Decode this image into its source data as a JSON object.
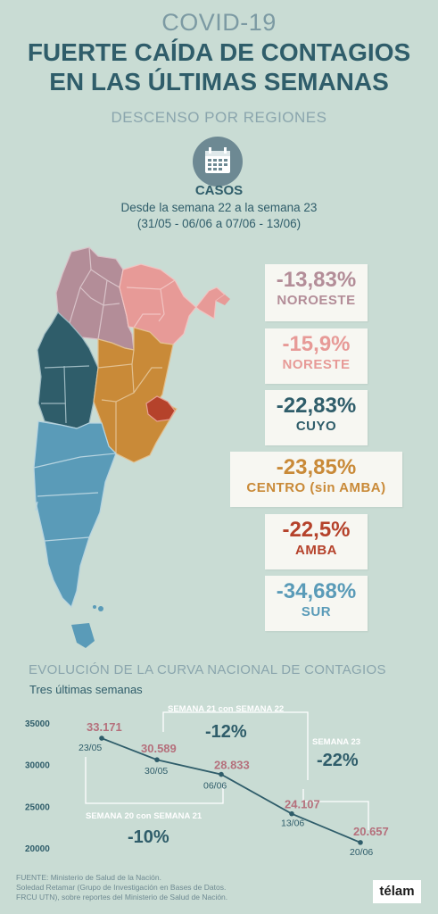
{
  "header": {
    "kicker": "COVID-19",
    "title_line1": "FUERTE CAÍDA DE CONTAGIOS",
    "title_line2": "EN LAS ÚLTIMAS SEMANAS",
    "subtitle": "DESCENSO POR REGIONES"
  },
  "cases": {
    "label": "CASOS",
    "period_line1": "Desde la semana 22 a la semana 23",
    "period_range_a": "31/05 - 06/06",
    "period_connector": "a",
    "period_range_b": "07/06 - 13/06",
    "icon": "calendar-icon"
  },
  "regions": [
    {
      "pct": "-13,83%",
      "name": "NOROESTE",
      "color": "#b38d98"
    },
    {
      "pct": "-15,9%",
      "name": "NORESTE",
      "color": "#e79a97"
    },
    {
      "pct": "-22,83%",
      "name": "CUYO",
      "color": "#2f5d6a"
    },
    {
      "pct": "-23,85%",
      "name": "CENTRO (sin AMBA)",
      "color": "#c98a38"
    },
    {
      "pct": "-22,5%",
      "name": "AMBA",
      "color": "#b5422b"
    },
    {
      "pct": "-34,68%",
      "name": "SUR",
      "color": "#5a9bb8"
    }
  ],
  "chart_data": {
    "type": "line",
    "title": "EVOLUCIÓN DE LA CURVA NACIONAL DE CONTAGIOS",
    "subtitle": "Tres últimas semanas",
    "x": [
      "23/05",
      "30/05",
      "06/06",
      "13/06",
      "20/06"
    ],
    "series": [
      {
        "values": [
          33171,
          30589,
          28833,
          24107,
          20657
        ],
        "labels": [
          "33.171",
          "30.589",
          "28.833",
          "24.107",
          "20.657"
        ]
      }
    ],
    "yticks": [
      "35000",
      "30000",
      "25000",
      "20000"
    ],
    "ylim": [
      20000,
      35000
    ],
    "annotations": [
      {
        "label": "SEMANA 20 con SEMANA 21",
        "value": "-10%"
      },
      {
        "label": "SEMANA 21 con SEMANA 22",
        "value": "-12%"
      },
      {
        "label": "SEMANA 23",
        "value": "-22%"
      }
    ],
    "colors": {
      "line": "#2f5d6a",
      "data_label": "#b5707c",
      "bracket": "#ffffff"
    }
  },
  "footer": {
    "source_line1": "FUENTE: Ministerio de Salud de la Nación.",
    "source_line2": "Soledad Retamar (Grupo de Investigación en Bases de Datos.",
    "source_line3": "FRCU UTN), sobre reportes del Ministerio de Salud de Nación.",
    "logo": "télam"
  }
}
